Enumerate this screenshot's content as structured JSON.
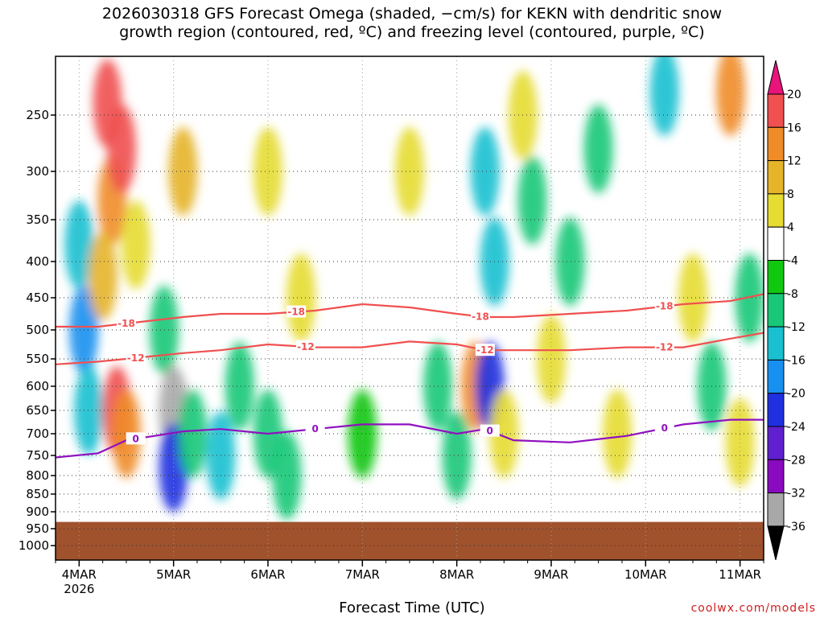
{
  "chart_data": {
    "type": "heatmap",
    "title_line1": "2026030318 GFS Forecast Omega (shaded, −cm/s) for KEKN with dendritic snow",
    "title_line2": "growth region (contoured, red, ºC) and freezing level (contoured, purple, ºC)",
    "xlabel": "Forecast Time (UTC)",
    "x_ticks": [
      {
        "label": "4MAR",
        "day": 4
      },
      {
        "label": "5MAR",
        "day": 5
      },
      {
        "label": "6MAR",
        "day": 6
      },
      {
        "label": "7MAR",
        "day": 7
      },
      {
        "label": "8MAR",
        "day": 8
      },
      {
        "label": "9MAR",
        "day": 9
      },
      {
        "label": "10MAR",
        "day": 10
      },
      {
        "label": "11MAR",
        "day": 11
      }
    ],
    "x_sublabel": "2026",
    "xlim": [
      3.75,
      11.25
    ],
    "y_ticks": [
      250,
      300,
      350,
      400,
      450,
      500,
      550,
      600,
      650,
      700,
      750,
      800,
      850,
      900,
      950,
      1000
    ],
    "ylim": [
      200,
      1050
    ],
    "ground_level_hPa": 930,
    "colorbar": {
      "levels": [
        -36,
        -32,
        -28,
        -24,
        -20,
        -16,
        -12,
        -8,
        -4,
        4,
        8,
        12,
        16,
        20
      ],
      "colors": [
        "#000000",
        "#a8a8a8",
        "#8a0ac0",
        "#6020d0",
        "#2030e0",
        "#1890f0",
        "#18c0d0",
        "#18c878",
        "#10c810",
        "#ffffff",
        "#e6dc32",
        "#e6b428",
        "#f08c28",
        "#f05050",
        "#e8147c"
      ]
    },
    "contours": [
      {
        "label": "-18",
        "color": "#f05050",
        "pressure": [
          495,
          495,
          490,
          485,
          480,
          475,
          475,
          470,
          460,
          465,
          475,
          480,
          480,
          475,
          470,
          460,
          455,
          445
        ],
        "days": [
          3.75,
          4.2,
          4.5,
          4.8,
          5.1,
          5.5,
          6.0,
          6.5,
          7.0,
          7.5,
          8.0,
          8.3,
          8.6,
          9.2,
          9.8,
          10.4,
          10.9,
          11.25
        ],
        "label_days": [
          4.5,
          6.3,
          8.25,
          10.2
        ]
      },
      {
        "label": "-12",
        "color": "#f05050",
        "pressure": [
          560,
          555,
          550,
          545,
          540,
          535,
          525,
          530,
          530,
          520,
          525,
          535,
          535,
          535,
          530,
          530,
          515,
          505
        ],
        "days": [
          3.75,
          4.2,
          4.5,
          4.8,
          5.1,
          5.5,
          6.0,
          6.5,
          7.0,
          7.5,
          8.0,
          8.3,
          8.6,
          9.2,
          9.8,
          10.4,
          10.9,
          11.25
        ],
        "label_days": [
          4.6,
          6.4,
          8.3,
          10.2
        ]
      },
      {
        "label": "0",
        "color": "#9010c0",
        "pressure": [
          755,
          745,
          715,
          705,
          695,
          690,
          700,
          690,
          680,
          680,
          700,
          690,
          715,
          720,
          705,
          680,
          670,
          670
        ],
        "days": [
          3.75,
          4.2,
          4.5,
          4.8,
          5.1,
          5.5,
          6.0,
          6.5,
          7.0,
          7.5,
          8.0,
          8.3,
          8.6,
          9.2,
          9.8,
          10.4,
          10.9,
          11.25
        ],
        "label_days": [
          4.6,
          6.5,
          8.35,
          10.2
        ]
      }
    ],
    "omega_features": [
      {
        "day": 4.0,
        "p": 380,
        "v": -14
      },
      {
        "day": 4.05,
        "p": 500,
        "v": -16
      },
      {
        "day": 4.1,
        "p": 650,
        "v": -12
      },
      {
        "day": 4.3,
        "p": 240,
        "v": 20
      },
      {
        "day": 4.35,
        "p": 330,
        "v": 16
      },
      {
        "day": 4.25,
        "p": 420,
        "v": 12
      },
      {
        "day": 4.45,
        "p": 280,
        "v": 18
      },
      {
        "day": 4.4,
        "p": 650,
        "v": 20
      },
      {
        "day": 4.5,
        "p": 700,
        "v": 14
      },
      {
        "day": 4.6,
        "p": 380,
        "v": 6
      },
      {
        "day": 4.9,
        "p": 500,
        "v": -10
      },
      {
        "day": 5.0,
        "p": 650,
        "v": -32
      },
      {
        "day": 5.0,
        "p": 780,
        "v": -20
      },
      {
        "day": 5.1,
        "p": 300,
        "v": 10
      },
      {
        "day": 5.2,
        "p": 700,
        "v": -8
      },
      {
        "day": 5.5,
        "p": 750,
        "v": -12
      },
      {
        "day": 5.7,
        "p": 600,
        "v": -8
      },
      {
        "day": 6.0,
        "p": 700,
        "v": -10
      },
      {
        "day": 6.0,
        "p": 300,
        "v": 8
      },
      {
        "day": 6.2,
        "p": 800,
        "v": -8
      },
      {
        "day": 6.35,
        "p": 450,
        "v": 6
      },
      {
        "day": 7.0,
        "p": 700,
        "v": -6
      },
      {
        "day": 7.5,
        "p": 300,
        "v": 6
      },
      {
        "day": 7.8,
        "p": 600,
        "v": -8
      },
      {
        "day": 8.0,
        "p": 750,
        "v": -10
      },
      {
        "day": 8.2,
        "p": 600,
        "v": 16
      },
      {
        "day": 8.3,
        "p": 300,
        "v": -14
      },
      {
        "day": 8.35,
        "p": 600,
        "v": -20
      },
      {
        "day": 8.4,
        "p": 400,
        "v": -12
      },
      {
        "day": 8.5,
        "p": 700,
        "v": 8
      },
      {
        "day": 8.7,
        "p": 250,
        "v": 6
      },
      {
        "day": 8.8,
        "p": 330,
        "v": -10
      },
      {
        "day": 9.0,
        "p": 550,
        "v": 6
      },
      {
        "day": 9.2,
        "p": 400,
        "v": -8
      },
      {
        "day": 9.5,
        "p": 280,
        "v": -8
      },
      {
        "day": 9.7,
        "p": 700,
        "v": 6
      },
      {
        "day": 10.2,
        "p": 230,
        "v": -12
      },
      {
        "day": 10.5,
        "p": 450,
        "v": 6
      },
      {
        "day": 10.7,
        "p": 600,
        "v": -8
      },
      {
        "day": 10.9,
        "p": 230,
        "v": 14
      },
      {
        "day": 11.0,
        "p": 720,
        "v": 6
      },
      {
        "day": 11.1,
        "p": 450,
        "v": -8
      }
    ]
  },
  "credit": "coolwx.com/models"
}
